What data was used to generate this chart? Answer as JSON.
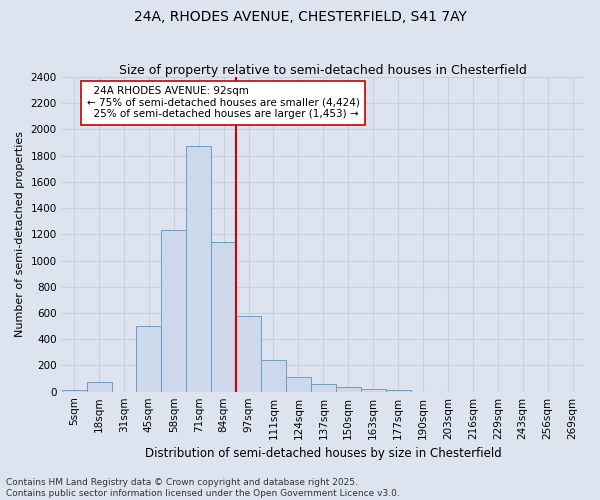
{
  "title1": "24A, RHODES AVENUE, CHESTERFIELD, S41 7AY",
  "title2": "Size of property relative to semi-detached houses in Chesterfield",
  "xlabel": "Distribution of semi-detached houses by size in Chesterfield",
  "ylabel": "Number of semi-detached properties",
  "categories": [
    "5sqm",
    "18sqm",
    "31sqm",
    "45sqm",
    "58sqm",
    "71sqm",
    "84sqm",
    "97sqm",
    "111sqm",
    "124sqm",
    "137sqm",
    "150sqm",
    "163sqm",
    "177sqm",
    "190sqm",
    "203sqm",
    "216sqm",
    "229sqm",
    "243sqm",
    "256sqm",
    "269sqm"
  ],
  "values": [
    15,
    75,
    0,
    500,
    1230,
    1870,
    1140,
    580,
    245,
    110,
    60,
    35,
    20,
    10,
    0,
    0,
    0,
    0,
    0,
    0,
    0
  ],
  "bar_color": "#cdd8ea",
  "bar_edge_color": "#6b9ec8",
  "vline_x_index": 7.0,
  "vline_color": "#cc0000",
  "annotation_box_edge": "#cc0000",
  "property_label": "24A RHODES AVENUE: 92sqm",
  "pct_smaller": 75,
  "count_smaller": 4424,
  "pct_larger": 25,
  "count_larger": 1453,
  "ylim": [
    0,
    2400
  ],
  "yticks": [
    0,
    200,
    400,
    600,
    800,
    1000,
    1200,
    1400,
    1600,
    1800,
    2000,
    2200,
    2400
  ],
  "background_color": "#dde4f0",
  "grid_color": "#c8d0e0",
  "footer_text": "Contains HM Land Registry data © Crown copyright and database right 2025.\nContains public sector information licensed under the Open Government Licence v3.0.",
  "title1_fontsize": 10,
  "title2_fontsize": 9,
  "xlabel_fontsize": 8.5,
  "ylabel_fontsize": 8,
  "tick_fontsize": 7.5,
  "footer_fontsize": 6.5,
  "ann_fontsize": 7.5
}
